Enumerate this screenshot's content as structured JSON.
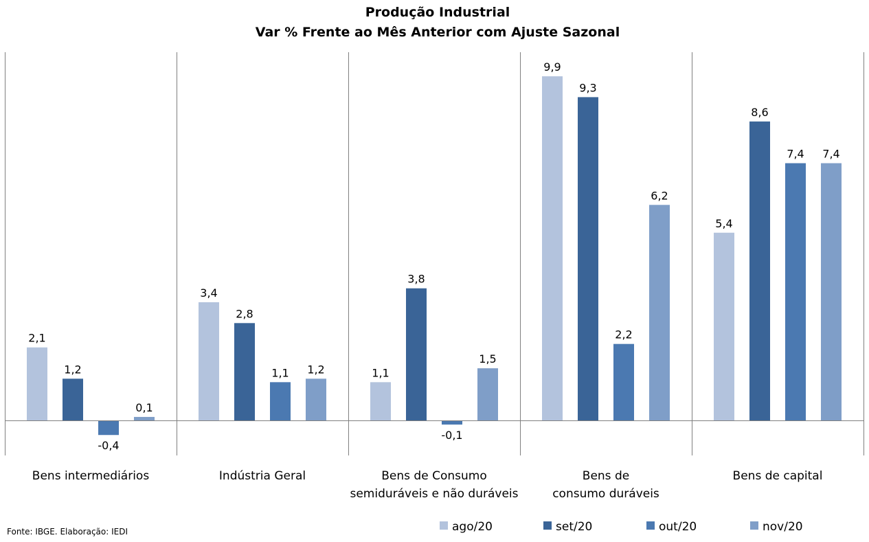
{
  "chart_data": {
    "type": "bar",
    "title": "Produção Industrial",
    "subtitle": "Var % Frente ao Mês Anterior com Ajuste Sazonal",
    "categories": [
      [
        "Bens intermediários"
      ],
      [
        "Indústria Geral"
      ],
      [
        "Bens de Consumo",
        "semiduráveis e não duráveis"
      ],
      [
        "Bens de",
        "consumo duráveis"
      ],
      [
        "Bens de capital"
      ]
    ],
    "series": [
      {
        "name": "ago/20",
        "color": "#b3c3dd",
        "values": [
          2.1,
          3.4,
          1.1,
          9.9,
          5.4
        ],
        "labels": [
          "2,1",
          "3,4",
          "1,1",
          "9,9",
          "5,4"
        ]
      },
      {
        "name": "set/20",
        "color": "#3a6497",
        "values": [
          1.2,
          2.8,
          3.8,
          9.3,
          8.6
        ],
        "labels": [
          "1,2",
          "2,8",
          "3,8",
          "9,3",
          "8,6"
        ]
      },
      {
        "name": "out/20",
        "color": "#4b79b1",
        "values": [
          -0.4,
          1.1,
          -0.1,
          2.2,
          7.4
        ],
        "labels": [
          "-0,4",
          "1,1",
          "-0,1",
          "2,2",
          "7,4"
        ]
      },
      {
        "name": "nov/20",
        "color": "#7f9ec8",
        "values": [
          0.1,
          1.2,
          1.5,
          6.2,
          7.4
        ],
        "labels": [
          "0,1",
          "1,2",
          "1,5",
          "6,2",
          "7,4"
        ]
      }
    ],
    "legend_position": "bottom-right",
    "grid": false
  },
  "source": "Fonte: IBGE. Elaboração: IEDI"
}
